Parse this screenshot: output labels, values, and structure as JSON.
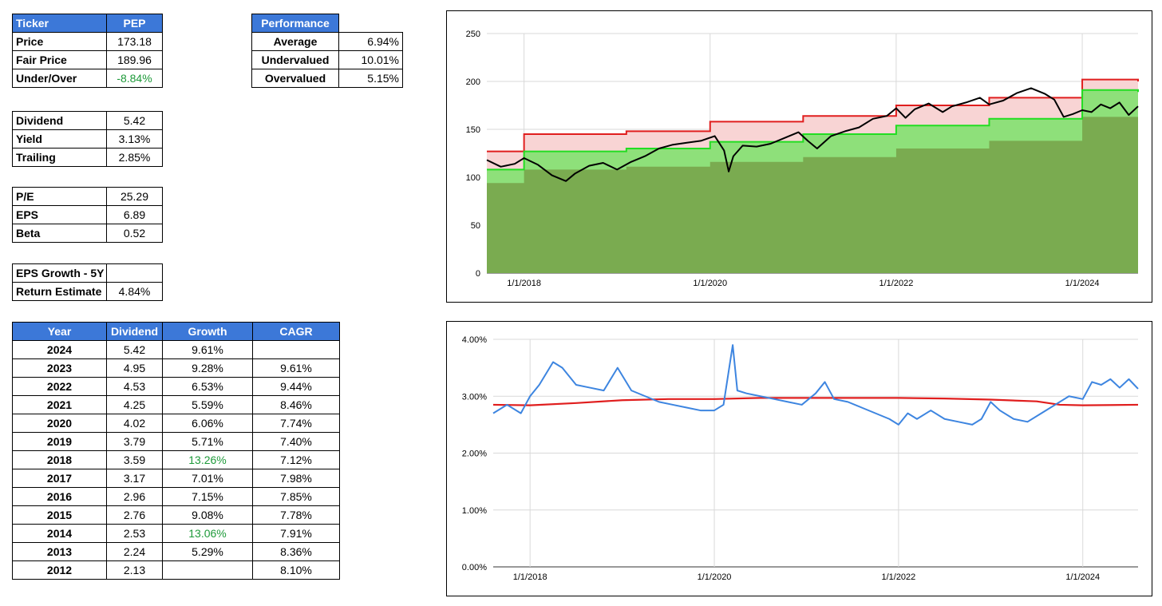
{
  "summary": {
    "ticker_label": "Ticker",
    "ticker": "PEP",
    "rows": [
      {
        "label": "Price",
        "value": "173.18"
      },
      {
        "label": "Fair Price",
        "value": "189.96"
      },
      {
        "label": "Under/Over",
        "value": "-8.84%"
      }
    ]
  },
  "dividend_box": [
    {
      "label": "Dividend",
      "value": "5.42"
    },
    {
      "label": "Yield",
      "value": "3.13%"
    },
    {
      "label": "Trailing",
      "value": "2.85%"
    }
  ],
  "valuation_box": [
    {
      "label": "P/E",
      "value": "25.29"
    },
    {
      "label": "EPS",
      "value": "6.89"
    },
    {
      "label": "Beta",
      "value": "0.52"
    }
  ],
  "growth_box": [
    {
      "label": "EPS Growth - 5Y",
      "value": ""
    },
    {
      "label": "Return Estimate",
      "value": "4.84%"
    }
  ],
  "performance": {
    "header": "Performance",
    "rows": [
      {
        "label": "Average",
        "value": "6.94%"
      },
      {
        "label": "Undervalued",
        "value": "10.01%"
      },
      {
        "label": "Overvalued",
        "value": "5.15%"
      }
    ]
  },
  "history": {
    "headers": [
      "Year",
      "Dividend",
      "Growth",
      "CAGR"
    ],
    "rows": [
      {
        "year": "2024",
        "dividend": "5.42",
        "growth": "9.61%",
        "cagr": ""
      },
      {
        "year": "2023",
        "dividend": "4.95",
        "growth": "9.28%",
        "cagr": "9.61%"
      },
      {
        "year": "2022",
        "dividend": "4.53",
        "growth": "6.53%",
        "cagr": "9.44%"
      },
      {
        "year": "2021",
        "dividend": "4.25",
        "growth": "5.59%",
        "cagr": "8.46%"
      },
      {
        "year": "2020",
        "dividend": "4.02",
        "growth": "6.06%",
        "cagr": "7.74%"
      },
      {
        "year": "2019",
        "dividend": "3.79",
        "growth": "5.71%",
        "cagr": "7.40%"
      },
      {
        "year": "2018",
        "dividend": "3.59",
        "growth": "13.26%",
        "cagr": "7.12%",
        "highlight": true
      },
      {
        "year": "2017",
        "dividend": "3.17",
        "growth": "7.01%",
        "cagr": "7.98%"
      },
      {
        "year": "2016",
        "dividend": "2.96",
        "growth": "7.15%",
        "cagr": "7.85%"
      },
      {
        "year": "2015",
        "dividend": "2.76",
        "growth": "9.08%",
        "cagr": "7.78%"
      },
      {
        "year": "2014",
        "dividend": "2.53",
        "growth": "13.06%",
        "cagr": "7.91%",
        "highlight": true
      },
      {
        "year": "2013",
        "dividend": "2.24",
        "growth": "5.29%",
        "cagr": "8.36%"
      },
      {
        "year": "2012",
        "dividend": "2.13",
        "growth": "",
        "cagr": "8.10%"
      }
    ]
  },
  "colors": {
    "header_blue": "#3c78d8",
    "price_line": "#000000",
    "fair_upper": "#e01e1e",
    "fair_lower": "#22dd22",
    "upper_fill": "#f8d4d4",
    "mid_fill": "#8ee07a",
    "base_fill": "#7aab50",
    "yield_line": "#3d85e0",
    "trailing_line": "#e01e1e",
    "positive_green": "#1e9a3a"
  },
  "chart_data": [
    {
      "type": "area",
      "x_ticks": [
        "1/1/2018",
        "1/1/2020",
        "1/1/2022",
        "1/1/2024"
      ],
      "y_ticks": [
        "0",
        "50",
        "100",
        "150",
        "200",
        "250"
      ],
      "ylim": [
        0,
        250
      ],
      "xlim": [
        2017.6,
        2024.6
      ],
      "grid": true,
      "series": [
        {
          "kind": "upper_band",
          "steps": [
            [
              2017.6,
              127
            ],
            [
              2018.0,
              145
            ],
            [
              2019.1,
              148
            ],
            [
              2020.0,
              158
            ],
            [
              2021.0,
              164
            ],
            [
              2022.0,
              175
            ],
            [
              2023.0,
              183
            ],
            [
              2024.0,
              202
            ],
            [
              2024.6,
              200
            ]
          ]
        },
        {
          "kind": "lower_band",
          "steps": [
            [
              2017.6,
              108
            ],
            [
              2018.0,
              127
            ],
            [
              2019.1,
              130
            ],
            [
              2020.0,
              137
            ],
            [
              2021.0,
              145
            ],
            [
              2022.0,
              154
            ],
            [
              2023.0,
              161
            ],
            [
              2024.0,
              191
            ],
            [
              2024.6,
              189
            ]
          ]
        },
        {
          "kind": "base",
          "steps": [
            [
              2017.6,
              94
            ],
            [
              2018.0,
              108
            ],
            [
              2019.1,
              111
            ],
            [
              2020.0,
              116
            ],
            [
              2021.0,
              121
            ],
            [
              2022.0,
              130
            ],
            [
              2023.0,
              138
            ],
            [
              2024.0,
              163
            ],
            [
              2024.6,
              162
            ]
          ]
        },
        {
          "kind": "price",
          "points": [
            [
              2017.6,
              118
            ],
            [
              2017.75,
              111
            ],
            [
              2017.9,
              114
            ],
            [
              2018.0,
              120
            ],
            [
              2018.15,
              113
            ],
            [
              2018.3,
              102
            ],
            [
              2018.45,
              96
            ],
            [
              2018.55,
              104
            ],
            [
              2018.7,
              112
            ],
            [
              2018.85,
              115
            ],
            [
              2019.0,
              108
            ],
            [
              2019.15,
              116
            ],
            [
              2019.3,
              122
            ],
            [
              2019.45,
              130
            ],
            [
              2019.6,
              134
            ],
            [
              2019.75,
              136
            ],
            [
              2019.9,
              138
            ],
            [
              2020.05,
              143
            ],
            [
              2020.15,
              128
            ],
            [
              2020.2,
              106
            ],
            [
              2020.25,
              122
            ],
            [
              2020.35,
              133
            ],
            [
              2020.5,
              132
            ],
            [
              2020.65,
              135
            ],
            [
              2020.8,
              141
            ],
            [
              2020.95,
              147
            ],
            [
              2021.05,
              138
            ],
            [
              2021.15,
              130
            ],
            [
              2021.3,
              143
            ],
            [
              2021.45,
              148
            ],
            [
              2021.6,
              152
            ],
            [
              2021.75,
              161
            ],
            [
              2021.9,
              164
            ],
            [
              2022.0,
              172
            ],
            [
              2022.1,
              162
            ],
            [
              2022.2,
              171
            ],
            [
              2022.35,
              177
            ],
            [
              2022.5,
              168
            ],
            [
              2022.6,
              174
            ],
            [
              2022.75,
              178
            ],
            [
              2022.9,
              183
            ],
            [
              2023.0,
              176
            ],
            [
              2023.15,
              180
            ],
            [
              2023.3,
              188
            ],
            [
              2023.45,
              193
            ],
            [
              2023.6,
              187
            ],
            [
              2023.7,
              181
            ],
            [
              2023.8,
              163
            ],
            [
              2023.9,
              166
            ],
            [
              2024.0,
              170
            ],
            [
              2024.1,
              168
            ],
            [
              2024.2,
              176
            ],
            [
              2024.3,
              172
            ],
            [
              2024.4,
              178
            ],
            [
              2024.5,
              165
            ],
            [
              2024.6,
              174
            ]
          ]
        }
      ]
    },
    {
      "type": "line",
      "x_ticks": [
        "1/1/2018",
        "1/1/2020",
        "1/1/2022",
        "1/1/2024"
      ],
      "y_ticks": [
        "0.00%",
        "1.00%",
        "2.00%",
        "3.00%",
        "4.00%"
      ],
      "ylim": [
        0,
        4
      ],
      "xlim": [
        2017.6,
        2024.6
      ],
      "grid": true,
      "series": [
        {
          "kind": "yield",
          "points": [
            [
              2017.6,
              2.7
            ],
            [
              2017.75,
              2.85
            ],
            [
              2017.9,
              2.7
            ],
            [
              2018.0,
              3.0
            ],
            [
              2018.1,
              3.2
            ],
            [
              2018.25,
              3.6
            ],
            [
              2018.35,
              3.5
            ],
            [
              2018.5,
              3.2
            ],
            [
              2018.65,
              3.15
            ],
            [
              2018.8,
              3.1
            ],
            [
              2018.95,
              3.5
            ],
            [
              2019.1,
              3.1
            ],
            [
              2019.25,
              3.0
            ],
            [
              2019.4,
              2.9
            ],
            [
              2019.55,
              2.85
            ],
            [
              2019.7,
              2.8
            ],
            [
              2019.85,
              2.75
            ],
            [
              2020.0,
              2.75
            ],
            [
              2020.1,
              2.85
            ],
            [
              2020.2,
              3.9
            ],
            [
              2020.25,
              3.1
            ],
            [
              2020.35,
              3.05
            ],
            [
              2020.5,
              3.0
            ],
            [
              2020.65,
              2.95
            ],
            [
              2020.8,
              2.9
            ],
            [
              2020.95,
              2.85
            ],
            [
              2021.1,
              3.05
            ],
            [
              2021.2,
              3.25
            ],
            [
              2021.3,
              2.95
            ],
            [
              2021.45,
              2.9
            ],
            [
              2021.6,
              2.8
            ],
            [
              2021.75,
              2.7
            ],
            [
              2021.9,
              2.6
            ],
            [
              2022.0,
              2.5
            ],
            [
              2022.1,
              2.7
            ],
            [
              2022.2,
              2.6
            ],
            [
              2022.35,
              2.75
            ],
            [
              2022.5,
              2.6
            ],
            [
              2022.65,
              2.55
            ],
            [
              2022.8,
              2.5
            ],
            [
              2022.9,
              2.6
            ],
            [
              2023.0,
              2.9
            ],
            [
              2023.1,
              2.75
            ],
            [
              2023.25,
              2.6
            ],
            [
              2023.4,
              2.55
            ],
            [
              2023.55,
              2.7
            ],
            [
              2023.7,
              2.85
            ],
            [
              2023.85,
              3.0
            ],
            [
              2024.0,
              2.95
            ],
            [
              2024.1,
              3.25
            ],
            [
              2024.2,
              3.2
            ],
            [
              2024.3,
              3.3
            ],
            [
              2024.4,
              3.15
            ],
            [
              2024.5,
              3.3
            ],
            [
              2024.6,
              3.13
            ]
          ]
        },
        {
          "kind": "trailing",
          "points": [
            [
              2017.6,
              2.85
            ],
            [
              2018.0,
              2.84
            ],
            [
              2018.5,
              2.88
            ],
            [
              2019.0,
              2.93
            ],
            [
              2019.5,
              2.95
            ],
            [
              2020.0,
              2.95
            ],
            [
              2020.5,
              2.97
            ],
            [
              2021.0,
              2.97
            ],
            [
              2021.5,
              2.97
            ],
            [
              2022.0,
              2.97
            ],
            [
              2022.5,
              2.96
            ],
            [
              2023.0,
              2.94
            ],
            [
              2023.5,
              2.91
            ],
            [
              2023.75,
              2.85
            ],
            [
              2024.0,
              2.84
            ],
            [
              2024.6,
              2.85
            ]
          ]
        }
      ]
    }
  ]
}
